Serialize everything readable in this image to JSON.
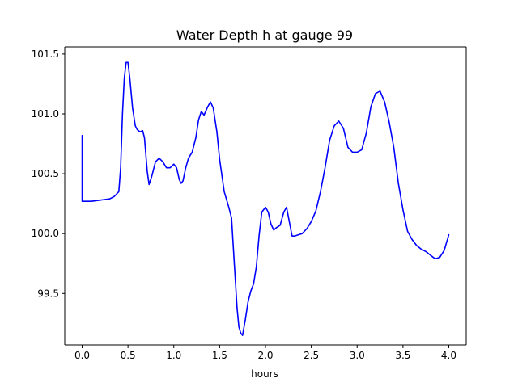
{
  "chart_data": {
    "type": "line",
    "title": "Water Depth h at gauge 99",
    "xlabel": "hours",
    "ylabel": "",
    "xlim": [
      -0.19,
      4.19
    ],
    "ylim": [
      99.07,
      101.56
    ],
    "x_ticks": [
      0.0,
      0.5,
      1.0,
      1.5,
      2.0,
      2.5,
      3.0,
      3.5,
      4.0
    ],
    "x_tick_labels": [
      "0.0",
      "0.5",
      "1.0",
      "1.5",
      "2.0",
      "2.5",
      "3.0",
      "3.5",
      "4.0"
    ],
    "y_ticks": [
      99.5,
      100.0,
      100.5,
      101.0,
      101.5
    ],
    "y_tick_labels": [
      "99.5",
      "100.0",
      "100.5",
      "101.0",
      "101.5"
    ],
    "grid": false,
    "legend": "none",
    "series": [
      {
        "color": "#0000ff",
        "x": [
          0.0,
          0.0,
          0.0,
          0.1,
          0.2,
          0.3,
          0.35,
          0.4,
          0.42,
          0.44,
          0.46,
          0.48,
          0.5,
          0.52,
          0.55,
          0.58,
          0.6,
          0.63,
          0.66,
          0.68,
          0.71,
          0.73,
          0.76,
          0.8,
          0.84,
          0.88,
          0.92,
          0.96,
          1.0,
          1.03,
          1.06,
          1.08,
          1.1,
          1.13,
          1.16,
          1.2,
          1.24,
          1.27,
          1.3,
          1.33,
          1.37,
          1.4,
          1.43,
          1.47,
          1.5,
          1.55,
          1.6,
          1.63,
          1.66,
          1.69,
          1.71,
          1.73,
          1.75,
          1.78,
          1.81,
          1.84,
          1.87,
          1.9,
          1.93,
          1.96,
          2.0,
          2.03,
          2.06,
          2.09,
          2.12,
          2.16,
          2.2,
          2.23,
          2.26,
          2.29,
          2.32,
          2.36,
          2.4,
          2.45,
          2.5,
          2.55,
          2.6,
          2.65,
          2.7,
          2.75,
          2.8,
          2.85,
          2.9,
          2.95,
          3.0,
          3.05,
          3.1,
          3.15,
          3.2,
          3.25,
          3.3,
          3.35,
          3.4,
          3.45,
          3.5,
          3.55,
          3.6,
          3.65,
          3.7,
          3.75,
          3.8,
          3.85,
          3.9,
          3.95,
          4.0
        ],
        "y": [
          100.82,
          100.27,
          100.27,
          100.27,
          100.28,
          100.29,
          100.31,
          100.35,
          100.55,
          101.0,
          101.3,
          101.43,
          101.43,
          101.3,
          101.05,
          100.9,
          100.87,
          100.85,
          100.86,
          100.8,
          100.52,
          100.41,
          100.48,
          100.6,
          100.63,
          100.6,
          100.55,
          100.55,
          100.58,
          100.55,
          100.45,
          100.42,
          100.44,
          100.55,
          100.63,
          100.68,
          100.8,
          100.95,
          101.02,
          100.99,
          101.06,
          101.1,
          101.05,
          100.85,
          100.62,
          100.35,
          100.22,
          100.13,
          99.75,
          99.38,
          99.22,
          99.17,
          99.15,
          99.28,
          99.43,
          99.52,
          99.58,
          99.72,
          99.98,
          100.18,
          100.22,
          100.18,
          100.08,
          100.03,
          100.05,
          100.07,
          100.18,
          100.22,
          100.1,
          99.98,
          99.98,
          99.99,
          100.0,
          100.04,
          100.1,
          100.19,
          100.35,
          100.55,
          100.78,
          100.9,
          100.94,
          100.88,
          100.72,
          100.68,
          100.68,
          100.7,
          100.84,
          101.06,
          101.17,
          101.19,
          101.1,
          100.93,
          100.72,
          100.42,
          100.2,
          100.02,
          99.95,
          99.9,
          99.87,
          99.85,
          99.82,
          99.79,
          99.8,
          99.86,
          99.99
        ]
      }
    ]
  }
}
